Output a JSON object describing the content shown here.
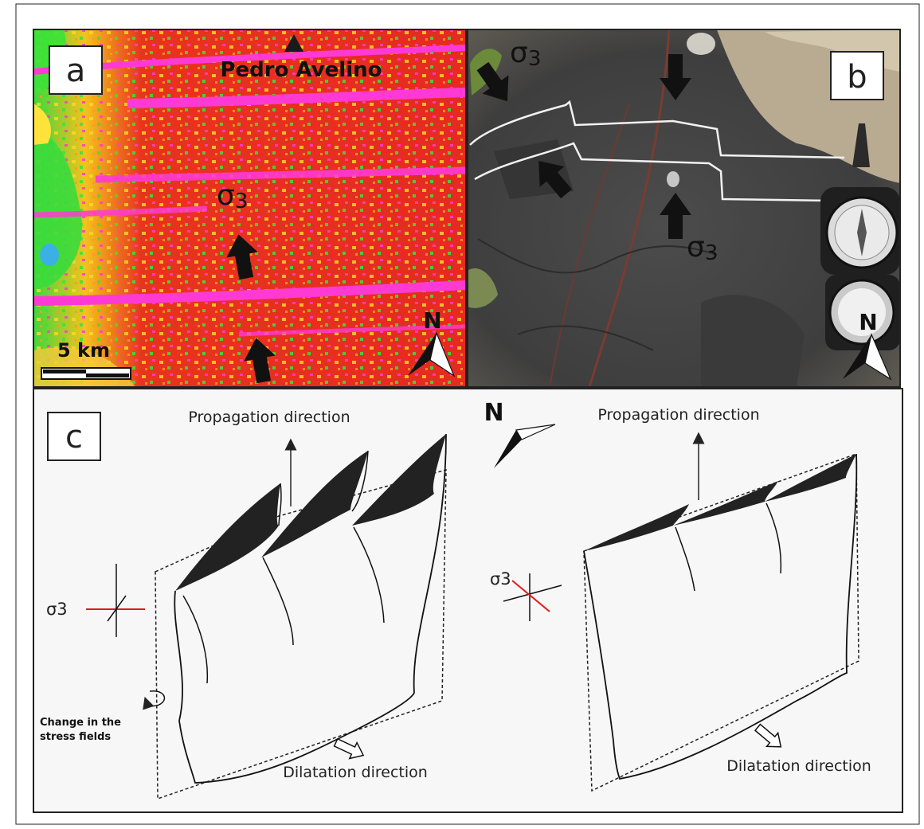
{
  "panel_a": {
    "label": "a",
    "place_name": "Pedro Avelino",
    "sigma_symbol": "σ",
    "sigma_subscript": "3",
    "scale_label": "5 km",
    "north_label": "N"
  },
  "panel_b": {
    "label": "b",
    "sigma_symbol": "σ",
    "sigma_subscript": "3",
    "north_label": "N"
  },
  "panel_c": {
    "label": "c",
    "north_label": "N",
    "left": {
      "propagation_label": "Propagation direction",
      "dilatation_label": "Dilatation direction",
      "sigma_label": "σ3",
      "stress_change_line1": "Change in the",
      "stress_change_line2": "stress fields"
    },
    "right": {
      "propagation_label": "Propagation direction",
      "dilatation_label": "Dilatation direction",
      "sigma_label": "σ3"
    }
  },
  "colors": {
    "map_red": "#e8231e",
    "map_magenta": "#ff2fd6",
    "map_green": "#36e43a",
    "map_yellow": "#ffe634",
    "photo_rock": "#4a4a4a",
    "sigma_marker": "#e01b1b"
  }
}
